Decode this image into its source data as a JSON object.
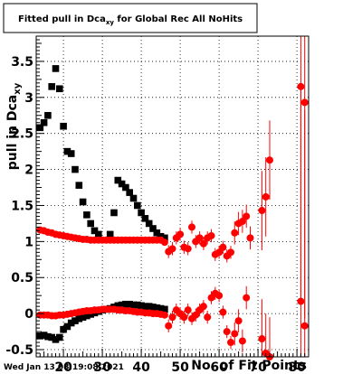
{
  "chart_data": {
    "type": "scatter",
    "title": "Fitted pull in Dca",
    "title_subscript": "xy",
    "title_suffix": " for Global Rec All NoHits",
    "xlabel": "No. of Fit Points",
    "ylabel": "pull in Dca",
    "ylabel_subscript": "xy",
    "timestamp": "Wed Jan 13 08:19:08 2021",
    "xlim": [
      13,
      83
    ],
    "ylim": [
      -0.6,
      3.85
    ],
    "grid": true,
    "x_ticks": [
      20,
      30,
      40,
      50,
      60,
      70,
      80
    ],
    "y_ticks": [
      -0.5,
      0,
      0.5,
      1,
      1.5,
      2,
      2.5,
      3,
      3.5
    ],
    "x_tick_labels": [
      "20",
      "30",
      "40",
      "50",
      "60",
      "70",
      "80"
    ],
    "y_tick_labels": [
      "-0.5",
      "0",
      "0.5",
      "1",
      "1.5",
      "2",
      "2.5",
      "3",
      "3.5"
    ],
    "series": [
      {
        "color": "#000000",
        "marker": "square",
        "points": [
          [
            14,
            2.58
          ],
          [
            15,
            2.65
          ],
          [
            16,
            2.75
          ],
          [
            17,
            3.15
          ],
          [
            18,
            3.4
          ],
          [
            19,
            3.12
          ],
          [
            20,
            2.6
          ],
          [
            21,
            2.25
          ],
          [
            22,
            2.22
          ],
          [
            23,
            2.0
          ],
          [
            24,
            1.78
          ],
          [
            25,
            1.55
          ],
          [
            26,
            1.37
          ],
          [
            27,
            1.25
          ],
          [
            28,
            1.15
          ],
          [
            29,
            1.1
          ],
          [
            32,
            1.1
          ],
          [
            33,
            1.4
          ],
          [
            34,
            1.85
          ],
          [
            35,
            1.8
          ],
          [
            36,
            1.75
          ],
          [
            37,
            1.68
          ],
          [
            38,
            1.6
          ],
          [
            39,
            1.5
          ],
          [
            40,
            1.4
          ],
          [
            41,
            1.32
          ],
          [
            42,
            1.25
          ],
          [
            43,
            1.18
          ],
          [
            44,
            1.12
          ],
          [
            45,
            1.07
          ],
          [
            46,
            1.05
          ],
          [
            14,
            -0.31
          ],
          [
            15,
            -0.3
          ],
          [
            16,
            -0.32
          ],
          [
            17,
            -0.33
          ],
          [
            18,
            -0.36
          ],
          [
            19,
            -0.33
          ],
          [
            20,
            -0.22
          ],
          [
            21,
            -0.18
          ],
          [
            22,
            -0.13
          ],
          [
            23,
            -0.1
          ],
          [
            24,
            -0.07
          ],
          [
            25,
            -0.05
          ],
          [
            26,
            -0.03
          ],
          [
            27,
            -0.01
          ],
          [
            28,
            0.01
          ],
          [
            29,
            0.03
          ],
          [
            30,
            0.05
          ],
          [
            31,
            0.06
          ],
          [
            32,
            0.07
          ],
          [
            33,
            0.09
          ],
          [
            34,
            0.11
          ],
          [
            35,
            0.12
          ],
          [
            36,
            0.13
          ],
          [
            37,
            0.13
          ],
          [
            38,
            0.12
          ],
          [
            39,
            0.12
          ],
          [
            40,
            0.11
          ],
          [
            41,
            0.1
          ],
          [
            42,
            0.1
          ],
          [
            43,
            0.09
          ],
          [
            44,
            0.08
          ],
          [
            45,
            0.07
          ],
          [
            46,
            0.06
          ]
        ]
      },
      {
        "color": "#ff0000",
        "marker": "circle",
        "points": [
          [
            14,
            1.16
          ],
          [
            15,
            1.15
          ],
          [
            16,
            1.13
          ],
          [
            17,
            1.12
          ],
          [
            18,
            1.1
          ],
          [
            19,
            1.09
          ],
          [
            20,
            1.08
          ],
          [
            21,
            1.07
          ],
          [
            22,
            1.06
          ],
          [
            23,
            1.05
          ],
          [
            24,
            1.04
          ],
          [
            25,
            1.03
          ],
          [
            26,
            1.03
          ],
          [
            27,
            1.02
          ],
          [
            28,
            1.02
          ],
          [
            29,
            1.02
          ],
          [
            30,
            1.02
          ],
          [
            31,
            1.02
          ],
          [
            32,
            1.02
          ],
          [
            33,
            1.02
          ],
          [
            34,
            1.02
          ],
          [
            35,
            1.02
          ],
          [
            36,
            1.02
          ],
          [
            37,
            1.02
          ],
          [
            38,
            1.02
          ],
          [
            39,
            1.02
          ],
          [
            40,
            1.02
          ],
          [
            41,
            1.02
          ],
          [
            42,
            1.02
          ],
          [
            43,
            1.02
          ],
          [
            44,
            1.02
          ],
          [
            45,
            1.02
          ],
          [
            46,
            0.99
          ],
          [
            47,
            0.86
          ],
          [
            48,
            0.9
          ],
          [
            49,
            1.05
          ],
          [
            50,
            1.1
          ],
          [
            51,
            0.92
          ],
          [
            52,
            0.9
          ],
          [
            53,
            1.2
          ],
          [
            54,
            1.0
          ],
          [
            55,
            1.05
          ],
          [
            56,
            0.97
          ],
          [
            57,
            1.05
          ],
          [
            58,
            1.08
          ],
          [
            59,
            0.82
          ],
          [
            60,
            0.85
          ],
          [
            61,
            0.92
          ],
          [
            62,
            0.8
          ],
          [
            63,
            0.85
          ],
          [
            64,
            1.12
          ],
          [
            65,
            1.25
          ],
          [
            66,
            1.28
          ],
          [
            67,
            1.35
          ],
          [
            68,
            1.05
          ],
          [
            71,
            1.43
          ],
          [
            72,
            1.62
          ],
          [
            73,
            2.13
          ],
          [
            81,
            3.15
          ],
          [
            82,
            2.93
          ],
          [
            14,
            -0.02
          ],
          [
            15,
            -0.02
          ],
          [
            16,
            -0.02
          ],
          [
            17,
            -0.03
          ],
          [
            18,
            -0.03
          ],
          [
            19,
            -0.02
          ],
          [
            20,
            -0.02
          ],
          [
            21,
            -0.01
          ],
          [
            22,
            0.0
          ],
          [
            23,
            0.01
          ],
          [
            24,
            0.02
          ],
          [
            25,
            0.03
          ],
          [
            26,
            0.04
          ],
          [
            27,
            0.04
          ],
          [
            28,
            0.05
          ],
          [
            29,
            0.05
          ],
          [
            30,
            0.06
          ],
          [
            31,
            0.06
          ],
          [
            32,
            0.06
          ],
          [
            33,
            0.06
          ],
          [
            34,
            0.05
          ],
          [
            35,
            0.05
          ],
          [
            36,
            0.04
          ],
          [
            37,
            0.04
          ],
          [
            38,
            0.03
          ],
          [
            39,
            0.02
          ],
          [
            40,
            0.02
          ],
          [
            41,
            0.01
          ],
          [
            42,
            0.01
          ],
          [
            43,
            0.0
          ],
          [
            44,
            0.0
          ],
          [
            45,
            -0.01
          ],
          [
            46,
            -0.02
          ],
          [
            47,
            -0.17
          ],
          [
            48,
            -0.05
          ],
          [
            49,
            0.05
          ],
          [
            50,
            0.0
          ],
          [
            51,
            -0.05
          ],
          [
            52,
            0.05
          ],
          [
            53,
            -0.07
          ],
          [
            54,
            -0.02
          ],
          [
            55,
            0.05
          ],
          [
            56,
            0.1
          ],
          [
            57,
            -0.05
          ],
          [
            58,
            0.22
          ],
          [
            59,
            0.28
          ],
          [
            60,
            0.25
          ],
          [
            61,
            0.02
          ],
          [
            62,
            -0.25
          ],
          [
            63,
            -0.4
          ],
          [
            64,
            -0.28
          ],
          [
            65,
            -0.1
          ],
          [
            66,
            -0.38
          ],
          [
            67,
            0.22
          ],
          [
            71,
            -0.35
          ],
          [
            72,
            -0.55
          ],
          [
            73,
            -0.6
          ],
          [
            81,
            0.17
          ],
          [
            82,
            -0.17
          ]
        ]
      }
    ]
  }
}
